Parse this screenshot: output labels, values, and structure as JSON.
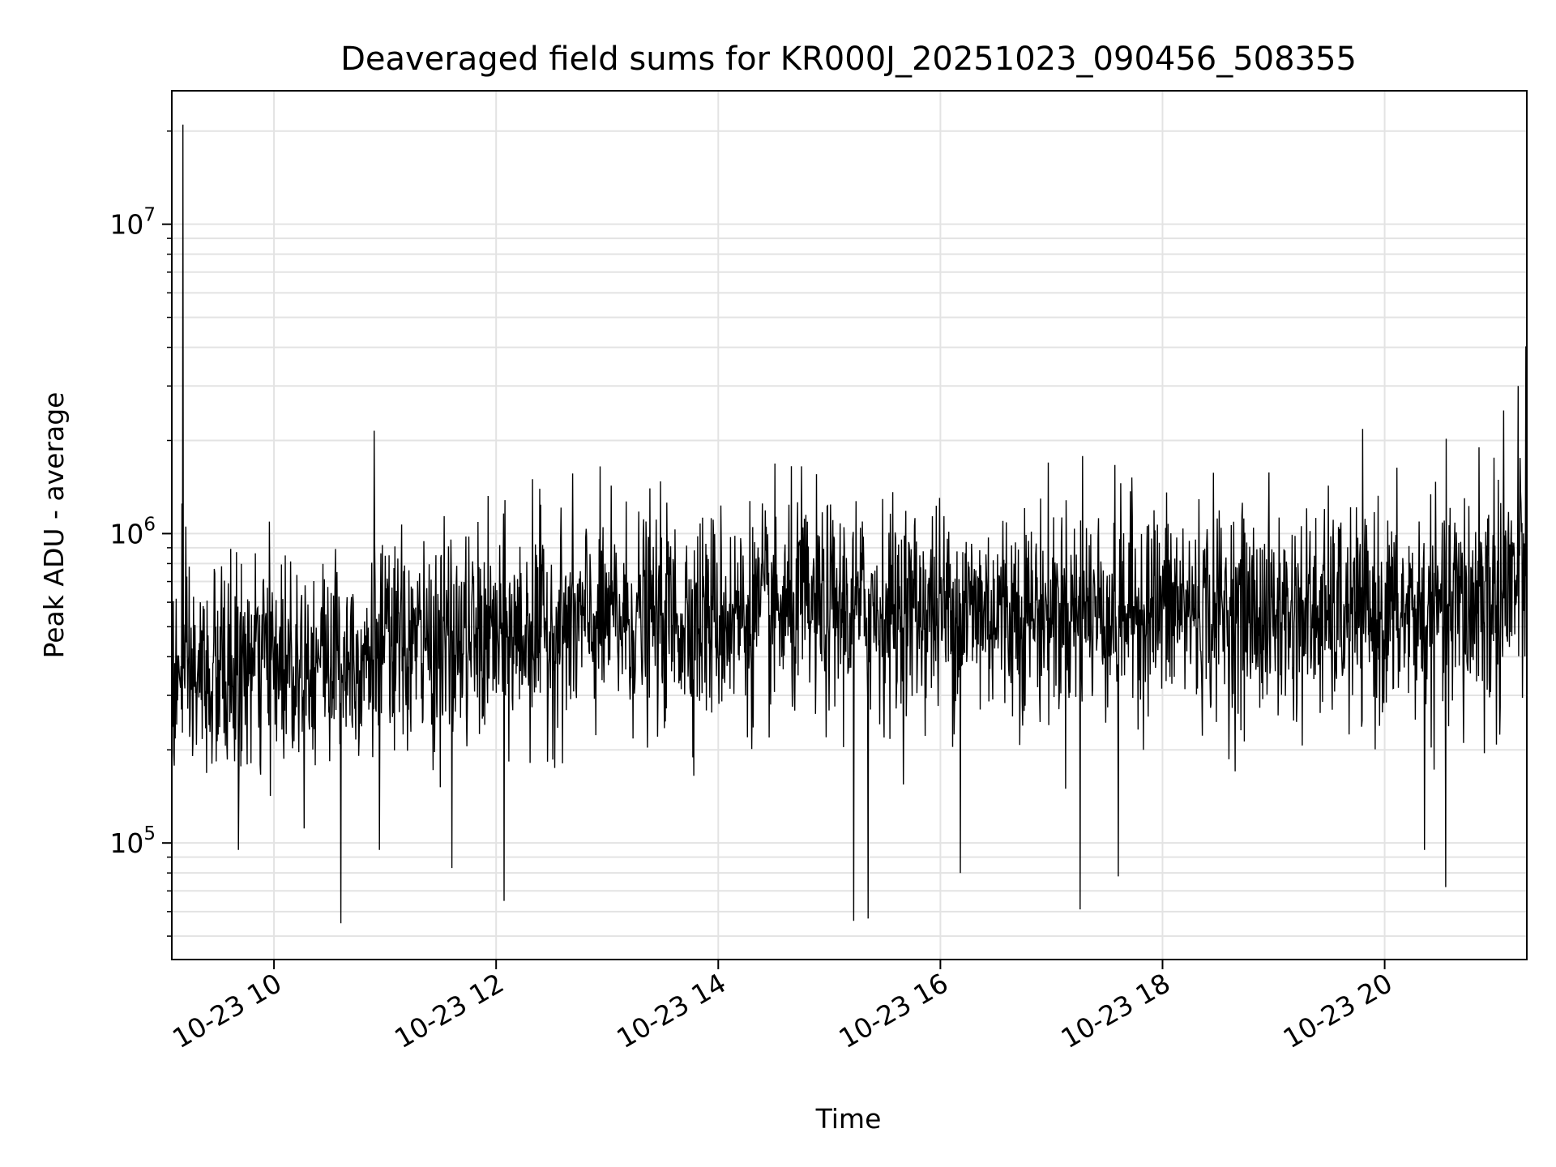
{
  "chart_data": {
    "type": "line",
    "title": "Deaveraged field sums for KR000J_20251023_090456_508355",
    "xlabel": "Time",
    "ylabel": "Peak ADU - average",
    "yscale": "log",
    "ylim": [
      42000,
      27000000
    ],
    "xlim_hours": [
      9.08,
      21.28
    ],
    "grid": true,
    "grid_minor_y": true,
    "line_color": "#000000",
    "x_ticks": [
      {
        "hour": 10,
        "label": "10-23 10"
      },
      {
        "hour": 12,
        "label": "10-23 12"
      },
      {
        "hour": 14,
        "label": "10-23 14"
      },
      {
        "hour": 16,
        "label": "10-23 16"
      },
      {
        "hour": 18,
        "label": "10-23 18"
      },
      {
        "hour": 20,
        "label": "10-23 20"
      }
    ],
    "y_ticks": [
      {
        "value": 100000,
        "base": "10",
        "exp": "5"
      },
      {
        "value": 1000000,
        "base": "10",
        "exp": "6"
      },
      {
        "value": 10000000,
        "base": "10",
        "exp": "7"
      }
    ],
    "trend": [
      {
        "hour": 9.08,
        "value": 320000
      },
      {
        "hour": 10.0,
        "value": 390000
      },
      {
        "hour": 11.0,
        "value": 420000
      },
      {
        "hour": 12.0,
        "value": 460000
      },
      {
        "hour": 13.0,
        "value": 520000
      },
      {
        "hour": 14.0,
        "value": 540000
      },
      {
        "hour": 15.0,
        "value": 560000
      },
      {
        "hour": 16.0,
        "value": 570000
      },
      {
        "hour": 17.0,
        "value": 560000
      },
      {
        "hour": 18.0,
        "value": 580000
      },
      {
        "hour": 19.0,
        "value": 540000
      },
      {
        "hour": 20.0,
        "value": 540000
      },
      {
        "hour": 20.7,
        "value": 560000
      },
      {
        "hour": 21.28,
        "value": 700000
      }
    ],
    "noise_sigma_decades": 0.17,
    "points_per_hour": 230,
    "peaks": [
      {
        "hour": 9.18,
        "value": 21000000
      },
      {
        "hour": 9.17,
        "value": 1250000
      },
      {
        "hour": 10.9,
        "value": 2150000
      },
      {
        "hour": 12.33,
        "value": 1500000
      },
      {
        "hour": 14.75,
        "value": 1650000
      },
      {
        "hour": 17.28,
        "value": 1780000
      },
      {
        "hour": 20.85,
        "value": 1900000
      },
      {
        "hour": 21.2,
        "value": 3000000
      },
      {
        "hour": 21.07,
        "value": 2500000
      }
    ],
    "dips": [
      {
        "hour": 9.68,
        "value": 95000
      },
      {
        "hour": 10.6,
        "value": 55000
      },
      {
        "hour": 10.95,
        "value": 95000
      },
      {
        "hour": 11.6,
        "value": 83000
      },
      {
        "hour": 12.07,
        "value": 65000
      },
      {
        "hour": 15.22,
        "value": 56000
      },
      {
        "hour": 15.35,
        "value": 57000
      },
      {
        "hour": 16.18,
        "value": 80000
      },
      {
        "hour": 17.26,
        "value": 61000
      },
      {
        "hour": 17.6,
        "value": 78000
      },
      {
        "hour": 20.55,
        "value": 72000
      },
      {
        "hour": 20.36,
        "value": 95000
      }
    ]
  }
}
